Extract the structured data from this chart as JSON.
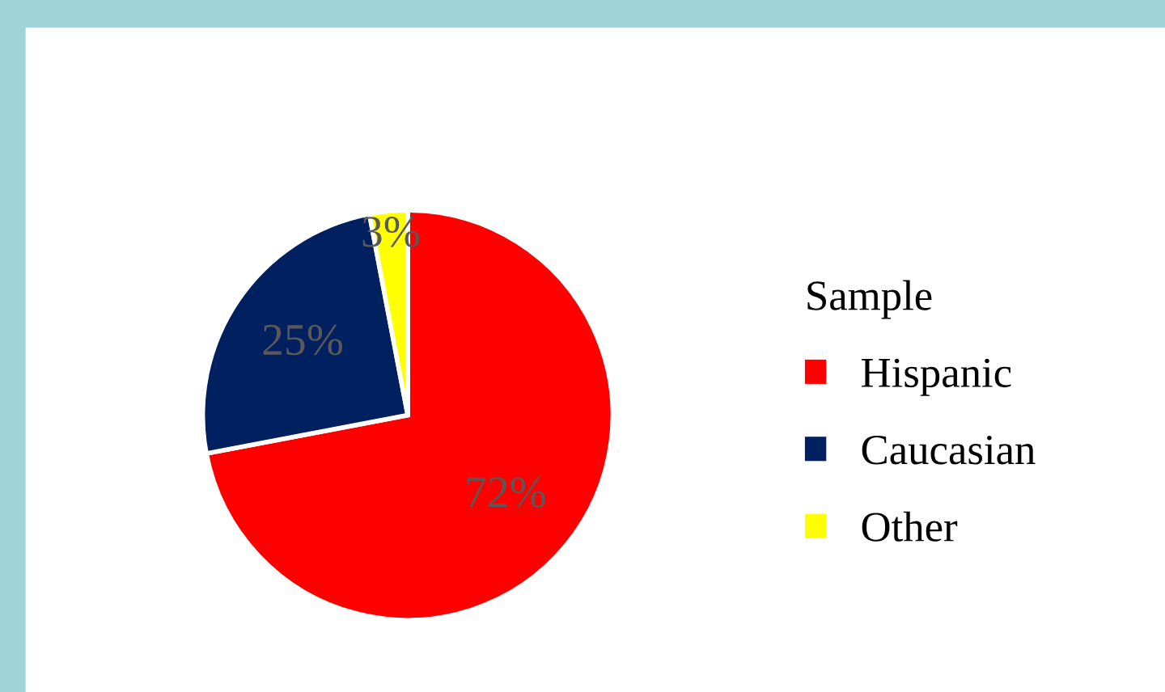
{
  "chart_data": {
    "type": "pie",
    "legend_title": "Sample",
    "categories": [
      "Hispanic",
      "Caucasian",
      "Other"
    ],
    "values": [
      72,
      25,
      3
    ],
    "colors": [
      "#ff0000",
      "#002060",
      "#ffff00"
    ],
    "value_labels": [
      "72%",
      "25%",
      "3%"
    ],
    "legend": "right"
  }
}
